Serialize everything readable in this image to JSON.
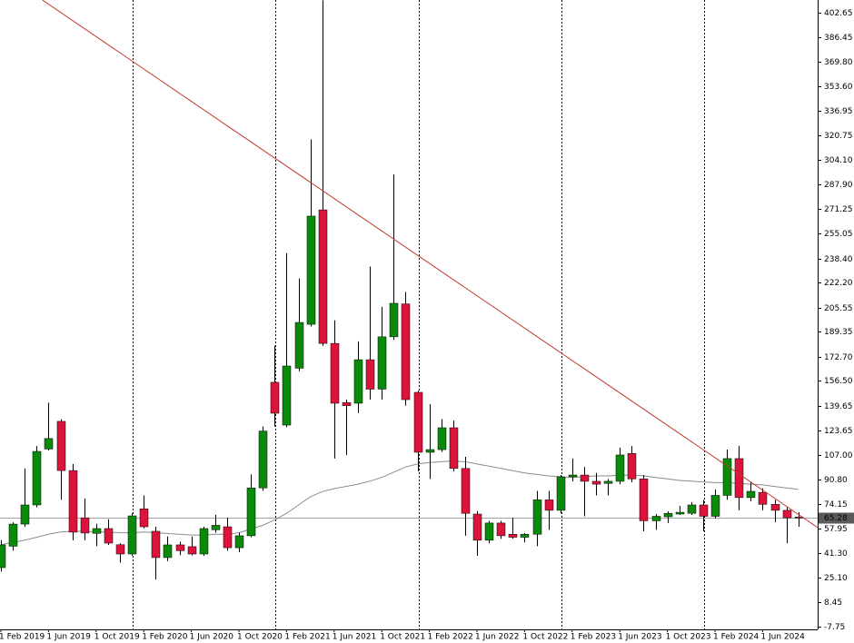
{
  "chart_data": {
    "type": "candlestick",
    "categories": [
      "1 Feb 2019",
      null,
      null,
      null,
      "1 Jun 2019",
      null,
      null,
      null,
      "1 Oct 2019",
      null,
      null,
      null,
      "1 Feb 2020",
      null,
      null,
      null,
      "1 Jun 2020",
      null,
      null,
      null,
      "1 Oct 2020",
      null,
      null,
      null,
      "1 Feb 2021",
      null,
      null,
      null,
      "1 Jun 2021",
      null,
      null,
      null,
      "1 Oct 2021",
      null,
      null,
      null,
      "1 Feb 2022",
      null,
      null,
      null,
      "1 Jun 2022",
      null,
      null,
      null,
      "1 Oct 2022",
      null,
      null,
      null,
      "1 Feb 2023",
      null,
      null,
      null,
      "1 Jun 2023",
      null,
      null,
      null,
      "1 Oct 2023",
      null,
      null,
      null,
      "1 Feb 2024",
      null,
      null,
      null,
      "1 Jun 2024",
      null,
      null,
      null
    ],
    "open": [
      31.7,
      46,
      60.8,
      73.6,
      111,
      129.5,
      96.6,
      65,
      54.6,
      57.8,
      47,
      40.8,
      71,
      56,
      38.4,
      46.9,
      45.7,
      40.8,
      57,
      59,
      45,
      53,
      85,
      155.6,
      127,
      165,
      194.4,
      270.9,
      181.6,
      142,
      141.6,
      170.7,
      151,
      186,
      208,
      148.9,
      108.8,
      110.6,
      125.2,
      98,
      67.5,
      50,
      61.5,
      54,
      52,
      54,
      77,
      70,
      92.4,
      93.6,
      89.4,
      88,
      89.4,
      108,
      91,
      63,
      65.7,
      67.5,
      68,
      73.6,
      66,
      80,
      104.6,
      78.5,
      82,
      74,
      70,
      65.5
    ],
    "high": [
      50,
      62,
      98,
      113,
      142,
      131,
      101,
      78,
      61,
      64,
      48,
      68,
      80,
      59,
      52.5,
      49,
      52.5,
      59,
      67,
      65,
      55,
      94,
      126,
      180,
      242,
      225,
      318,
      411,
      197,
      144,
      183,
      233,
      206,
      294.6,
      216,
      150,
      141,
      131,
      130,
      105.8,
      69.4,
      63,
      63,
      65,
      54.8,
      83,
      83,
      93.6,
      104.6,
      99,
      95,
      91,
      112,
      113,
      93.6,
      67.5,
      69.4,
      73,
      75.5,
      77,
      84,
      110.6,
      113,
      89,
      84.7,
      77,
      72,
      68.7
    ],
    "low": [
      29,
      43,
      59,
      72,
      110,
      77,
      50,
      50,
      46,
      46.9,
      35,
      39.6,
      58,
      23.8,
      36,
      40,
      40,
      39.6,
      55,
      43,
      42,
      52,
      83,
      126,
      125.6,
      163,
      193,
      180,
      104.6,
      107,
      135,
      144,
      144,
      184,
      140,
      96,
      91,
      109,
      96,
      53,
      39.6,
      48,
      51,
      51,
      48.7,
      46,
      57,
      68,
      89.4,
      66,
      80,
      80,
      87.5,
      88.8,
      56,
      57,
      61.5,
      66.9,
      66.9,
      56,
      64.5,
      77,
      70,
      76,
      70,
      62,
      48,
      59
    ],
    "close": [
      46.9,
      60.8,
      73.6,
      109.4,
      118,
      96.6,
      55.4,
      54.8,
      57.8,
      48.1,
      40.8,
      66.3,
      59,
      38.4,
      46.9,
      43,
      40.8,
      57.8,
      60,
      45,
      53,
      85,
      123,
      134.9,
      166.5,
      195.6,
      266.7,
      181.6,
      141.6,
      140,
      170.7,
      151,
      186,
      208.4,
      144,
      108.8,
      110.6,
      125.2,
      98,
      68,
      50,
      61.5,
      53,
      52,
      54,
      77,
      70,
      92.4,
      93.6,
      89.4,
      87.5,
      89.4,
      107,
      91,
      63,
      66,
      68,
      68.7,
      73.6,
      66,
      80,
      104.6,
      78.5,
      82.7,
      74,
      70,
      65,
      65.28
    ],
    "up_color": "#0a8a0a",
    "down_color": "#dc143c",
    "moving_average": {
      "color": "#8c8c8c",
      "values": [
        47,
        48.5,
        50,
        52,
        54,
        55.5,
        56,
        56,
        55.5,
        55.5,
        55,
        55,
        55.5,
        55,
        54.5,
        54,
        53.5,
        53.5,
        54,
        54,
        55,
        57.5,
        60,
        63.5,
        68,
        73.5,
        79,
        82.5,
        84.5,
        86,
        87.5,
        89.5,
        92,
        95.5,
        99,
        101,
        102,
        102.5,
        103,
        102.5,
        101,
        99.5,
        98,
        96.5,
        95,
        94,
        93,
        92.5,
        92,
        92.5,
        93,
        93,
        93.5,
        93.5,
        93,
        92,
        91,
        90,
        89.5,
        89,
        88.5,
        88.5,
        88,
        87.5,
        87,
        86,
        85,
        84
      ]
    },
    "trendline": {
      "color": "#c0392b",
      "x": [
        11,
        59
      ],
      "values": [
        370.5,
        110.6
      ]
    },
    "current_price": {
      "value": 65.28,
      "color": "#a0a0a0"
    },
    "separators": [
      11,
      23,
      35,
      47,
      59
    ],
    "ylim": [
      -9.6,
      411.2
    ],
    "yticks": [
      402.65,
      386.45,
      {
        "value": 369.8,
        "label": "369.80"
      },
      {
        "value": 353.6,
        "label": "353.60"
      },
      336.95,
      320.75,
      {
        "value": 304.1,
        "label": "304.10"
      },
      {
        "value": 287.9,
        "label": "287.90"
      },
      271.25,
      255.05,
      {
        "value": 238.4,
        "label": "238.40"
      },
      {
        "value": 222.2,
        "label": "222.20"
      },
      205.55,
      189.35,
      {
        "value": 172.7,
        "label": "172.70"
      },
      {
        "value": 156.5,
        "label": "156.50"
      },
      139.65,
      123.65,
      {
        "value": 107,
        "label": "107.00"
      },
      {
        "value": 90.8,
        "label": "90.80"
      },
      74.15,
      57.95,
      {
        "value": 41.3,
        "label": "41.30"
      },
      {
        "value": 25.1,
        "label": "25.10"
      },
      8.45,
      -7.75
    ]
  }
}
